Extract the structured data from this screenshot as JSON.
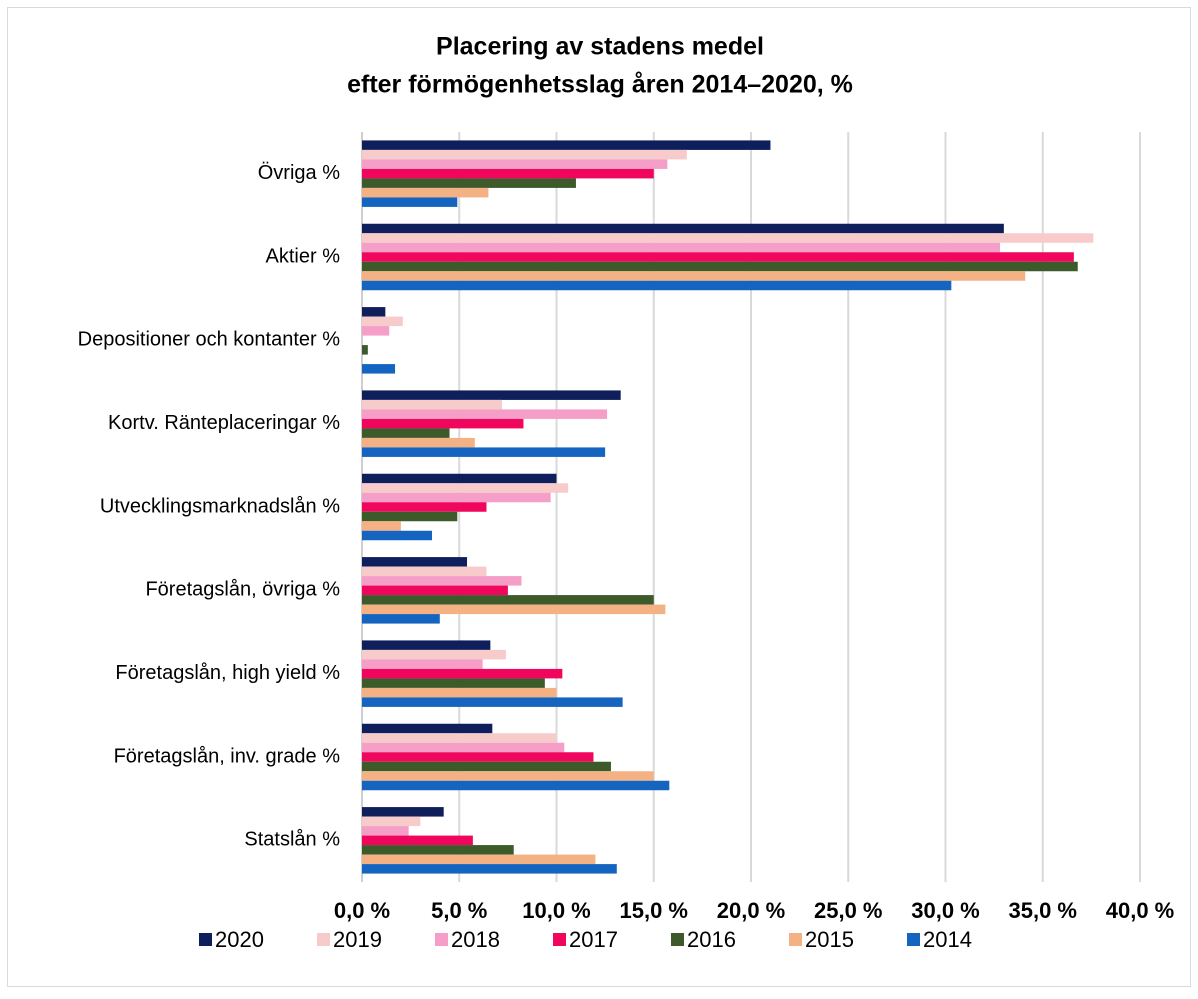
{
  "chart_data": {
    "type": "hbar",
    "title": "Placering av stadens medel",
    "subtitle": "efter förmögenhetsslag åren 2014–2020, %",
    "categories": [
      "Övriga %",
      "Aktier %",
      "Depositioner och kontanter %",
      "Kortv. Ränteplaceringar %",
      "Utvecklingsmarknadslån %",
      "Företagslån, övriga %",
      "Företagslån, high yield %",
      "Företagslån, inv. grade %",
      "Statslån %"
    ],
    "series": [
      {
        "name": "2020",
        "color": "#0e1f5b",
        "values": [
          21.0,
          33.0,
          1.2,
          13.3,
          10.0,
          5.4,
          6.6,
          6.7,
          4.2
        ]
      },
      {
        "name": "2019",
        "color": "#f8cbcb",
        "values": [
          16.7,
          37.6,
          2.1,
          7.2,
          10.6,
          6.4,
          7.4,
          10.0,
          3.0
        ]
      },
      {
        "name": "2018",
        "color": "#f59ec8",
        "values": [
          15.7,
          32.8,
          1.4,
          12.6,
          9.7,
          8.2,
          6.2,
          10.4,
          2.4
        ]
      },
      {
        "name": "2017",
        "color": "#f0065c",
        "values": [
          15.0,
          36.6,
          0,
          8.3,
          6.4,
          7.5,
          10.3,
          11.9,
          5.7
        ]
      },
      {
        "name": "2016",
        "color": "#3d5a2b",
        "values": [
          11.0,
          36.8,
          0.3,
          4.5,
          4.9,
          15.0,
          9.4,
          12.8,
          7.8
        ]
      },
      {
        "name": "2015",
        "color": "#f4b183",
        "values": [
          6.5,
          34.1,
          0,
          5.8,
          2.0,
          15.6,
          10.0,
          15.0,
          12.0
        ]
      },
      {
        "name": "2014",
        "color": "#1565c0",
        "values": [
          4.9,
          30.3,
          1.7,
          12.5,
          3.6,
          4.0,
          13.4,
          15.8,
          13.1
        ]
      }
    ],
    "xlim": [
      0,
      40
    ],
    "xticks": [
      {
        "value": 0,
        "label": "0,0 %"
      },
      {
        "value": 5,
        "label": "5,0 %"
      },
      {
        "value": 10,
        "label": "10,0 %"
      },
      {
        "value": 15,
        "label": "15,0 %"
      },
      {
        "value": 20,
        "label": "20,0 %"
      },
      {
        "value": 25,
        "label": "25,0 %"
      },
      {
        "value": 30,
        "label": "30,0 %"
      },
      {
        "value": 35,
        "label": "35,0 %"
      },
      {
        "value": 40,
        "label": "40,0 %"
      }
    ],
    "grid": true,
    "legend": "bottom"
  }
}
